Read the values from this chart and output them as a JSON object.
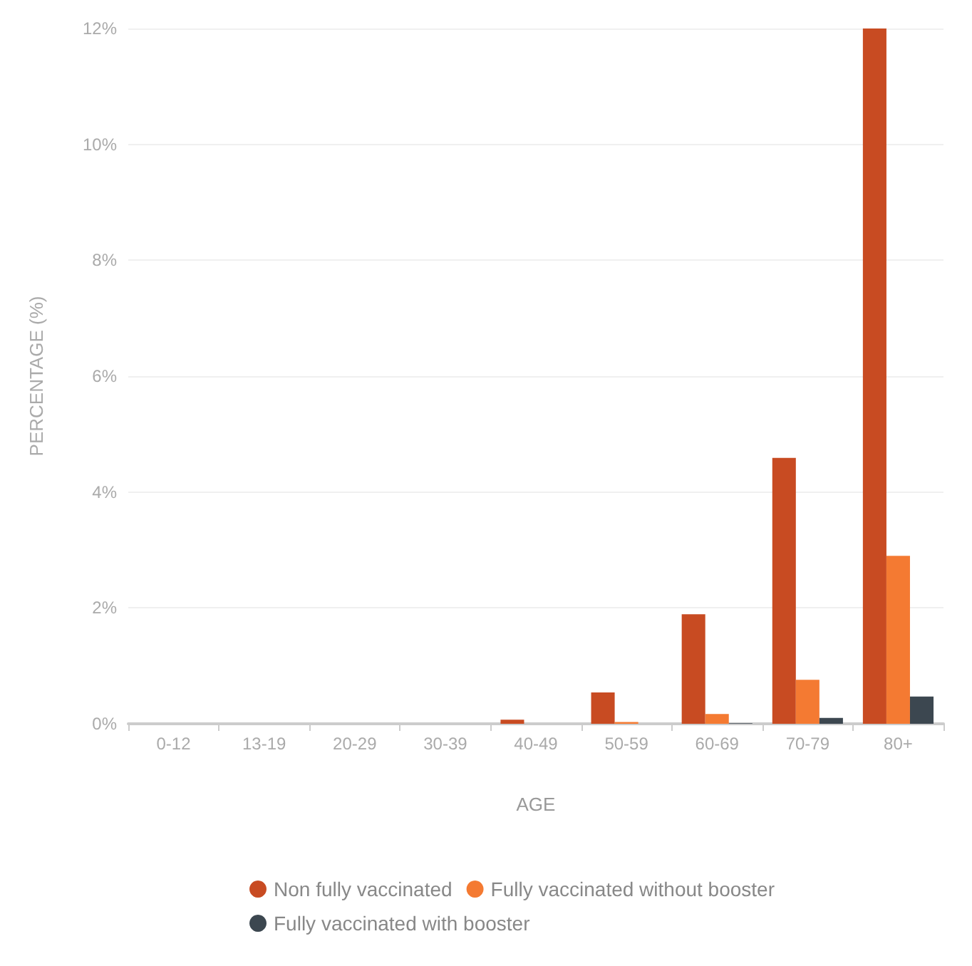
{
  "chart_data": {
    "type": "bar",
    "xlabel": "AGE",
    "ylabel": "PERCENTAGE (%)",
    "categories": [
      "0-12",
      "13-19",
      "20-29",
      "30-39",
      "40-49",
      "50-59",
      "60-69",
      "70-79",
      "80+"
    ],
    "series": [
      {
        "name": "Non fully vaccinated",
        "color": "#c84b22",
        "values": [
          0,
          0,
          0,
          0,
          0.07,
          0.54,
          1.89,
          4.59,
          12
        ]
      },
      {
        "name": "Fully vaccinated without booster",
        "color": "#f47a32",
        "values": [
          0,
          0,
          0,
          0,
          0,
          0.03,
          0.17,
          0.76,
          2.9
        ]
      },
      {
        "name": "Fully vaccinated with booster",
        "color": "#3c4750",
        "values": [
          0,
          0,
          0,
          0,
          0,
          0,
          0.01,
          0.1,
          0.47
        ]
      }
    ],
    "ylim": [
      0,
      12
    ],
    "yticks": [
      {
        "value": 0,
        "label": "0%"
      },
      {
        "value": 2,
        "label": "2%"
      },
      {
        "value": 4,
        "label": "4%"
      },
      {
        "value": 6,
        "label": "6%"
      },
      {
        "value": 8,
        "label": "8%"
      },
      {
        "value": 10,
        "label": "10%"
      },
      {
        "value": 12,
        "label": "12%"
      }
    ],
    "grid": "y",
    "legend": "bottom"
  }
}
